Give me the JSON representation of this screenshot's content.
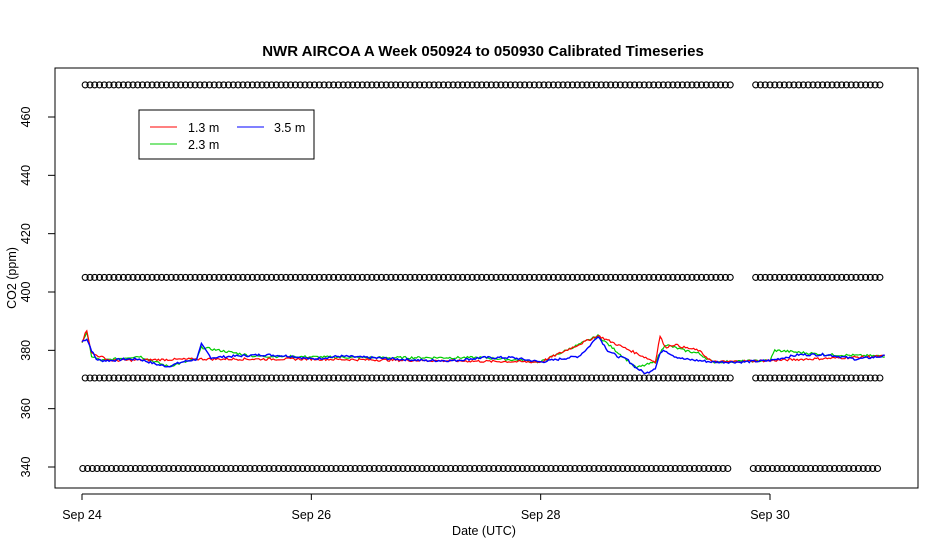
{
  "colors": {
    "background": "#ffffff",
    "axis": "#000000",
    "series_1_3m": "#ff0000",
    "series_2_3m": "#00cc00",
    "series_3_5m": "#0000ff",
    "markers": "#000000"
  },
  "chart_data": {
    "type": "line",
    "title": "NWR AIRCOA A  Week 050924 to 050930  Calibrated Timeseries",
    "xlabel": "Date (UTC)",
    "ylabel": "CO2 (ppm)",
    "xlim": [
      "2005-09-24T00:00",
      "2005-10-01T00:00"
    ],
    "ylim": [
      335,
      475
    ],
    "x_ticks": [
      {
        "value": "2005-09-24T00:00",
        "label": "Sep 24"
      },
      {
        "value": "2005-09-26T00:00",
        "label": "Sep 26"
      },
      {
        "value": "2005-09-28T00:00",
        "label": "Sep 28"
      },
      {
        "value": "2005-09-30T00:00",
        "label": "Sep 30"
      }
    ],
    "y_ticks": [
      340,
      360,
      380,
      400,
      420,
      440,
      460
    ],
    "legend": {
      "position": "top-left",
      "entries": [
        {
          "label": "1.3 m",
          "color": "#ff0000"
        },
        {
          "label": "2.3 m",
          "color": "#00cc00"
        },
        {
          "label": "3.5 m",
          "color": "#0000ff"
        }
      ]
    },
    "grid": false,
    "series": [
      {
        "name": "3.5 m",
        "color": "#0000ff",
        "x": [
          "2005-09-24T00:00",
          "2005-09-24T01:00",
          "2005-09-24T02:00",
          "2005-09-24T03:00",
          "2005-09-24T04:00",
          "2005-09-24T06:00",
          "2005-09-24T09:00",
          "2005-09-24T12:00",
          "2005-09-24T14:00",
          "2005-09-24T16:00",
          "2005-09-24T18:00",
          "2005-09-24T21:00",
          "2005-09-25T00:00",
          "2005-09-25T01:00",
          "2005-09-25T03:00",
          "2005-09-25T08:00",
          "2005-09-25T14:00",
          "2005-09-25T20:00",
          "2005-09-26T00:00",
          "2005-09-26T06:00",
          "2005-09-26T12:00",
          "2005-09-26T18:00",
          "2005-09-27T00:00",
          "2005-09-27T06:00",
          "2005-09-27T12:00",
          "2005-09-27T18:00",
          "2005-09-28T00:00",
          "2005-09-28T04:00",
          "2005-09-28T08:00",
          "2005-09-28T10:00",
          "2005-09-28T12:00",
          "2005-09-28T14:00",
          "2005-09-28T16:00",
          "2005-09-28T18:00",
          "2005-09-28T20:00",
          "2005-09-28T22:00",
          "2005-09-29T00:00",
          "2005-09-29T01:00",
          "2005-09-29T02:00",
          "2005-09-29T04:00",
          "2005-09-29T06:00",
          "2005-09-29T09:00",
          "2005-09-29T12:00",
          "2005-09-29T18:00",
          "2005-09-30T00:00",
          "2005-09-30T06:00",
          "2005-09-30T12:00",
          "2005-09-30T18:00",
          "2005-10-01T00:00"
        ],
        "values": [
          383,
          384,
          380,
          377,
          376.5,
          376.5,
          377,
          377,
          376,
          375,
          374.5,
          376,
          377,
          382,
          377.5,
          378,
          378.5,
          378,
          377,
          378,
          377.5,
          377,
          376.5,
          376.5,
          377.5,
          377.5,
          376,
          377,
          378,
          381,
          385,
          380,
          378,
          377,
          374,
          372,
          374,
          379,
          380,
          378,
          377,
          376.5,
          376,
          376,
          376.5,
          378.5,
          378.5,
          377,
          378
        ]
      },
      {
        "name": "2.3 m",
        "color": "#00cc00",
        "x": [
          "2005-09-24T00:00",
          "2005-09-24T01:00",
          "2005-09-24T02:00",
          "2005-09-24T04:00",
          "2005-09-24T12:00",
          "2005-09-24T18:00",
          "2005-09-25T00:00",
          "2005-09-25T01:00",
          "2005-09-25T12:00",
          "2005-09-26T12:00",
          "2005-09-27T12:00",
          "2005-09-28T00:00",
          "2005-09-28T12:00",
          "2005-09-28T20:00",
          "2005-09-29T00:00",
          "2005-09-29T02:00",
          "2005-09-29T04:00",
          "2005-09-29T06:00",
          "2005-09-29T09:00",
          "2005-09-29T12:00",
          "2005-09-30T00:00",
          "2005-09-30T01:00",
          "2005-09-30T12:00",
          "2005-10-01T00:00"
        ],
        "values": [
          383,
          386,
          378,
          376.5,
          378,
          374.5,
          377,
          381,
          378,
          377.5,
          377.5,
          376,
          385,
          374,
          376,
          382,
          381,
          380,
          379,
          376,
          376.5,
          380,
          378.5,
          378
        ]
      },
      {
        "name": "1.3 m",
        "color": "#ff0000",
        "x": [
          "2005-09-24T00:00",
          "2005-09-24T01:00",
          "2005-09-24T02:00",
          "2005-09-24T06:00",
          "2005-09-25T00:00",
          "2005-09-26T00:00",
          "2005-09-27T00:00",
          "2005-09-28T00:00",
          "2005-09-28T12:00",
          "2005-09-29T00:00",
          "2005-09-29T01:00",
          "2005-09-29T02:00",
          "2005-09-29T04:00",
          "2005-09-29T06:00",
          "2005-09-29T09:00",
          "2005-09-29T12:00",
          "2005-09-30T00:00",
          "2005-10-01T00:00"
        ],
        "values": [
          383,
          387,
          379,
          376.5,
          377,
          377,
          376.5,
          376,
          385,
          376,
          385,
          381,
          382,
          381,
          380,
          376,
          376.5,
          378
        ]
      }
    ],
    "marker_rows": [
      {
        "value": 471,
        "x_range": [
          "2005-09-24T00:40",
          "2005-09-29T15:40"
        ],
        "x_range2": [
          "2005-09-29T21:00",
          "2005-09-30T23:10"
        ],
        "step_minutes": 60
      },
      {
        "value": 405,
        "x_range": [
          "2005-09-24T00:40",
          "2005-09-29T15:40"
        ],
        "x_range2": [
          "2005-09-29T21:00",
          "2005-09-30T23:10"
        ],
        "step_minutes": 60
      },
      {
        "value": 370.5,
        "x_range": [
          "2005-09-24T00:40",
          "2005-09-29T15:40"
        ],
        "x_range2": [
          "2005-09-29T21:00",
          "2005-09-30T23:10"
        ],
        "step_minutes": 60
      },
      {
        "value": 339.5,
        "x_range": [
          "2005-09-24T00:10",
          "2005-09-29T15:10"
        ],
        "x_range2": [
          "2005-09-29T20:30",
          "2005-09-30T23:00"
        ],
        "step_minutes": 60
      }
    ]
  }
}
